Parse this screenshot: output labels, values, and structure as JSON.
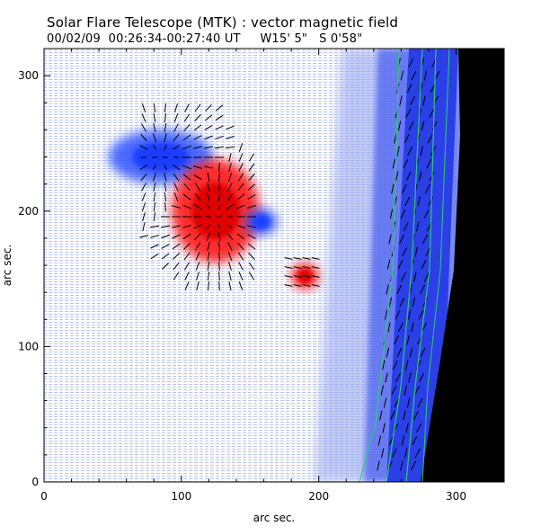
{
  "header": {
    "title": "Solar Flare Telescope (MTK) : vector magnetic field",
    "subtitle": "00/02/09  00:26:34-00:27:40 UT     W15' 5\"   S 0'58\""
  },
  "axes": {
    "x_label": "arc sec.",
    "y_label": "arc sec.",
    "x_ticks": [
      "0",
      "100",
      "200",
      "300"
    ],
    "y_ticks": [
      "0",
      "100",
      "200",
      "300"
    ]
  },
  "image_extent": {
    "x_range": [
      0,
      335
    ],
    "y_range": [
      0,
      320
    ],
    "limb_x_at_top": 263,
    "limb_x_at_bottom": 232
  },
  "regions": [
    {
      "polarity": "negative",
      "cx": 85,
      "cy": 240,
      "rx": 38,
      "ry": 20
    },
    {
      "polarity": "positive",
      "cx": 125,
      "cy": 200,
      "rx": 32,
      "ry": 38
    },
    {
      "polarity": "positive",
      "cx": 190,
      "cy": 152,
      "rx": 10,
      "ry": 10
    },
    {
      "polarity": "negative",
      "cx": 158,
      "cy": 192,
      "rx": 12,
      "ry": 10
    }
  ],
  "colors": {
    "positive": "#ff1a1a",
    "negative": "#2e52ff",
    "background": "#ffffff",
    "offdisk": "#000000",
    "contour": "#2ecc71"
  }
}
